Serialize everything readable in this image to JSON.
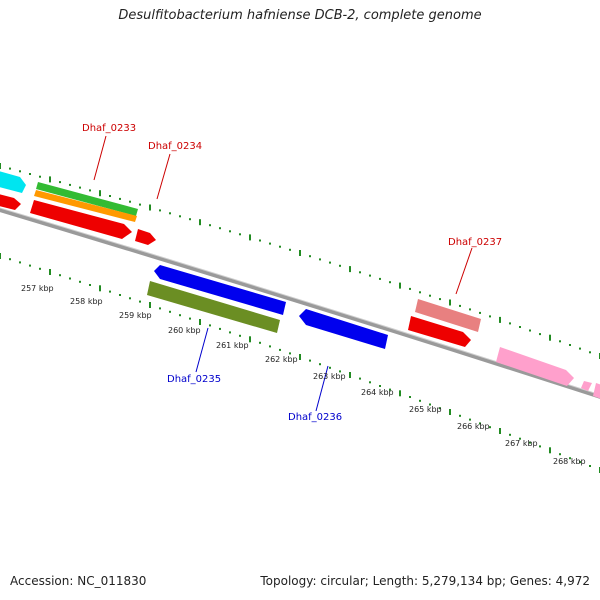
{
  "header": {
    "title": "Desulfitobacterium hafniense DCB-2, complete genome"
  },
  "footer": {
    "accession": "Accession: NC_011830",
    "topology": "Topology: circular; Length: 5,279,134 bp; Genes: 4,972"
  },
  "kbp_ticks": [
    "257 kbp",
    "258 kbp",
    "259 kbp",
    "260 kbp",
    "261 kbp",
    "262 kbp",
    "263 kbp",
    "264 kbp",
    "265 kbp",
    "266 kbp",
    "267 kbp",
    "268 kbp"
  ],
  "gene_labels": [
    "Dhaf_0233",
    "Dhaf_0234",
    "Dhaf_0235",
    "Dhaf_0236",
    "Dhaf_0237"
  ],
  "colors": {
    "cyan": "#00e5f0",
    "red": "#ee0000",
    "green": "#33bb33",
    "orange": "#ff9900",
    "blue": "#0000ee",
    "olive": "#6b8e23",
    "salmon": "#e88080",
    "pink": "#ffa0cc",
    "backbone": "#808080",
    "tick": "#228b22",
    "label_red": "#cc0000",
    "label_blue": "#0000cc"
  }
}
